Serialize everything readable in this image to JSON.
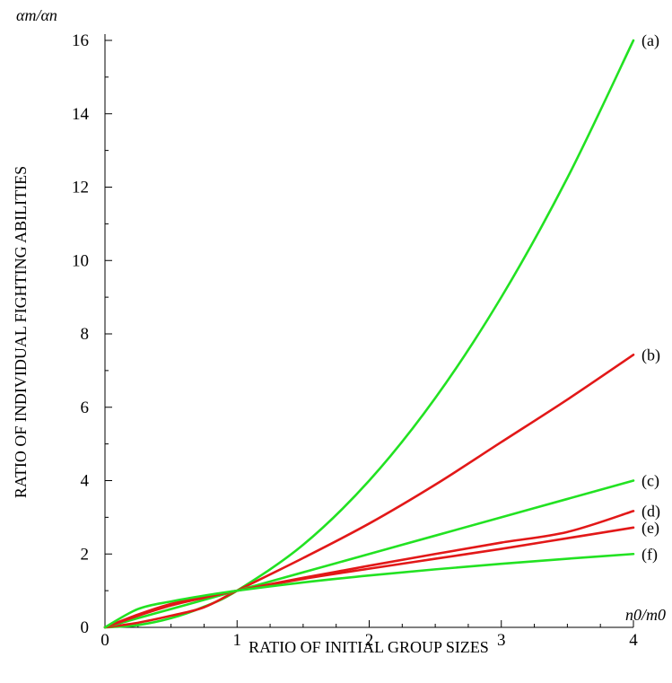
{
  "chart_data": {
    "type": "line",
    "title": "",
    "xlabel": "RATIO OF INITIAL GROUP SIZES",
    "ylabel": "RATIO OF INDIVIDUAL FIGHTING ABILITIES",
    "x_unit": "n0/m0",
    "y_unit": "αm/αn",
    "xlim": [
      0,
      4
    ],
    "ylim": [
      0,
      16
    ],
    "x_ticks": [
      "0",
      "1",
      "2",
      "3",
      "4"
    ],
    "y_ticks": [
      "0",
      "2",
      "4",
      "6",
      "8",
      "10",
      "12",
      "14",
      "16"
    ],
    "grid": false,
    "legend": "none",
    "x": [
      0,
      0.25,
      0.5,
      0.75,
      1,
      1.5,
      2,
      2.5,
      3,
      3.5,
      4
    ],
    "series": [
      {
        "name": "(a)",
        "color": "#22e222",
        "values": [
          0,
          0.0625,
          0.25,
          0.5625,
          1,
          2.25,
          4,
          6.25,
          9,
          12.25,
          16
        ]
      },
      {
        "name": "(b)",
        "color": "#e21818",
        "values": [
          0,
          0.126,
          0.317,
          0.547,
          1,
          1.89,
          2.83,
          3.89,
          5.05,
          6.21,
          7.43
        ]
      },
      {
        "name": "(c)",
        "color": "#22e222",
        "values": [
          0,
          0.25,
          0.5,
          0.75,
          1,
          1.5,
          2,
          2.5,
          3,
          3.5,
          4
        ]
      },
      {
        "name": "(d)",
        "color": "#e21818",
        "values": [
          0,
          0.315,
          0.595,
          0.806,
          1,
          1.35,
          1.68,
          2.0,
          2.31,
          2.6,
          3.17
        ]
      },
      {
        "name": "(e)",
        "color": "#e21818",
        "values": [
          0,
          0.35,
          0.64,
          0.83,
          1,
          1.32,
          1.6,
          1.87,
          2.14,
          2.43,
          2.72
        ]
      },
      {
        "name": "(f)",
        "color": "#22e222",
        "values": [
          0,
          0.5,
          0.707,
          0.866,
          1,
          1.225,
          1.414,
          1.581,
          1.732,
          1.871,
          2
        ]
      }
    ]
  }
}
